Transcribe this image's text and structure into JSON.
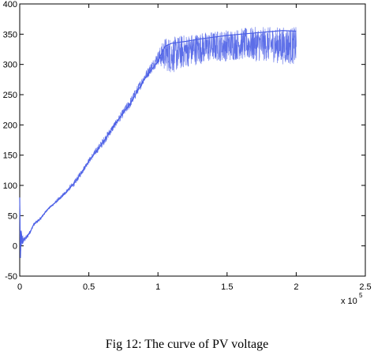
{
  "caption": "Fig 12: The curve of PV voltage",
  "chart_data": {
    "type": "line",
    "title": "",
    "xlabel": "",
    "ylabel": "",
    "x_multiplier_label": "x 10",
    "x_multiplier_exponent": "5",
    "xlim": [
      0,
      250000
    ],
    "ylim": [
      -50,
      400
    ],
    "xticks": [
      0,
      50000,
      100000,
      150000,
      200000,
      250000
    ],
    "xtick_labels": [
      "0",
      "0.5",
      "1",
      "1.5",
      "2",
      "2.5"
    ],
    "yticks": [
      -50,
      0,
      50,
      100,
      150,
      200,
      250,
      300,
      350,
      400
    ],
    "ytick_labels": [
      "-50",
      "0",
      "50",
      "100",
      "150",
      "200",
      "250",
      "300",
      "350",
      "400"
    ],
    "grid": false,
    "series_color": "#4a5ee6",
    "series": [
      {
        "x": [
          0,
          500,
          1000,
          2000,
          3000,
          5000,
          8000,
          10000,
          15000,
          20000,
          30000,
          40000,
          50000,
          60000,
          70000,
          80000,
          90000,
          100000,
          105000,
          110000,
          120000,
          130000,
          140000,
          150000,
          160000,
          170000,
          180000,
          190000,
          200000
        ],
        "values": [
          80,
          -20,
          25,
          5,
          10,
          15,
          25,
          35,
          45,
          60,
          80,
          105,
          140,
          170,
          205,
          235,
          275,
          305,
          330,
          335,
          338,
          342,
          345,
          348,
          350,
          352,
          354,
          356,
          355
        ],
        "band_upper": [
          80,
          20,
          30,
          20,
          15,
          18,
          28,
          38,
          48,
          62,
          84,
          110,
          145,
          178,
          210,
          245,
          285,
          322,
          345,
          345,
          350,
          353,
          355,
          358,
          360,
          362,
          362,
          362,
          362
        ],
        "band_lower": [
          80,
          -20,
          -10,
          0,
          5,
          10,
          22,
          32,
          42,
          58,
          78,
          100,
          136,
          164,
          198,
          228,
          270,
          300,
          290,
          285,
          295,
          300,
          305,
          305,
          308,
          305,
          305,
          300,
          300
        ]
      }
    ]
  }
}
